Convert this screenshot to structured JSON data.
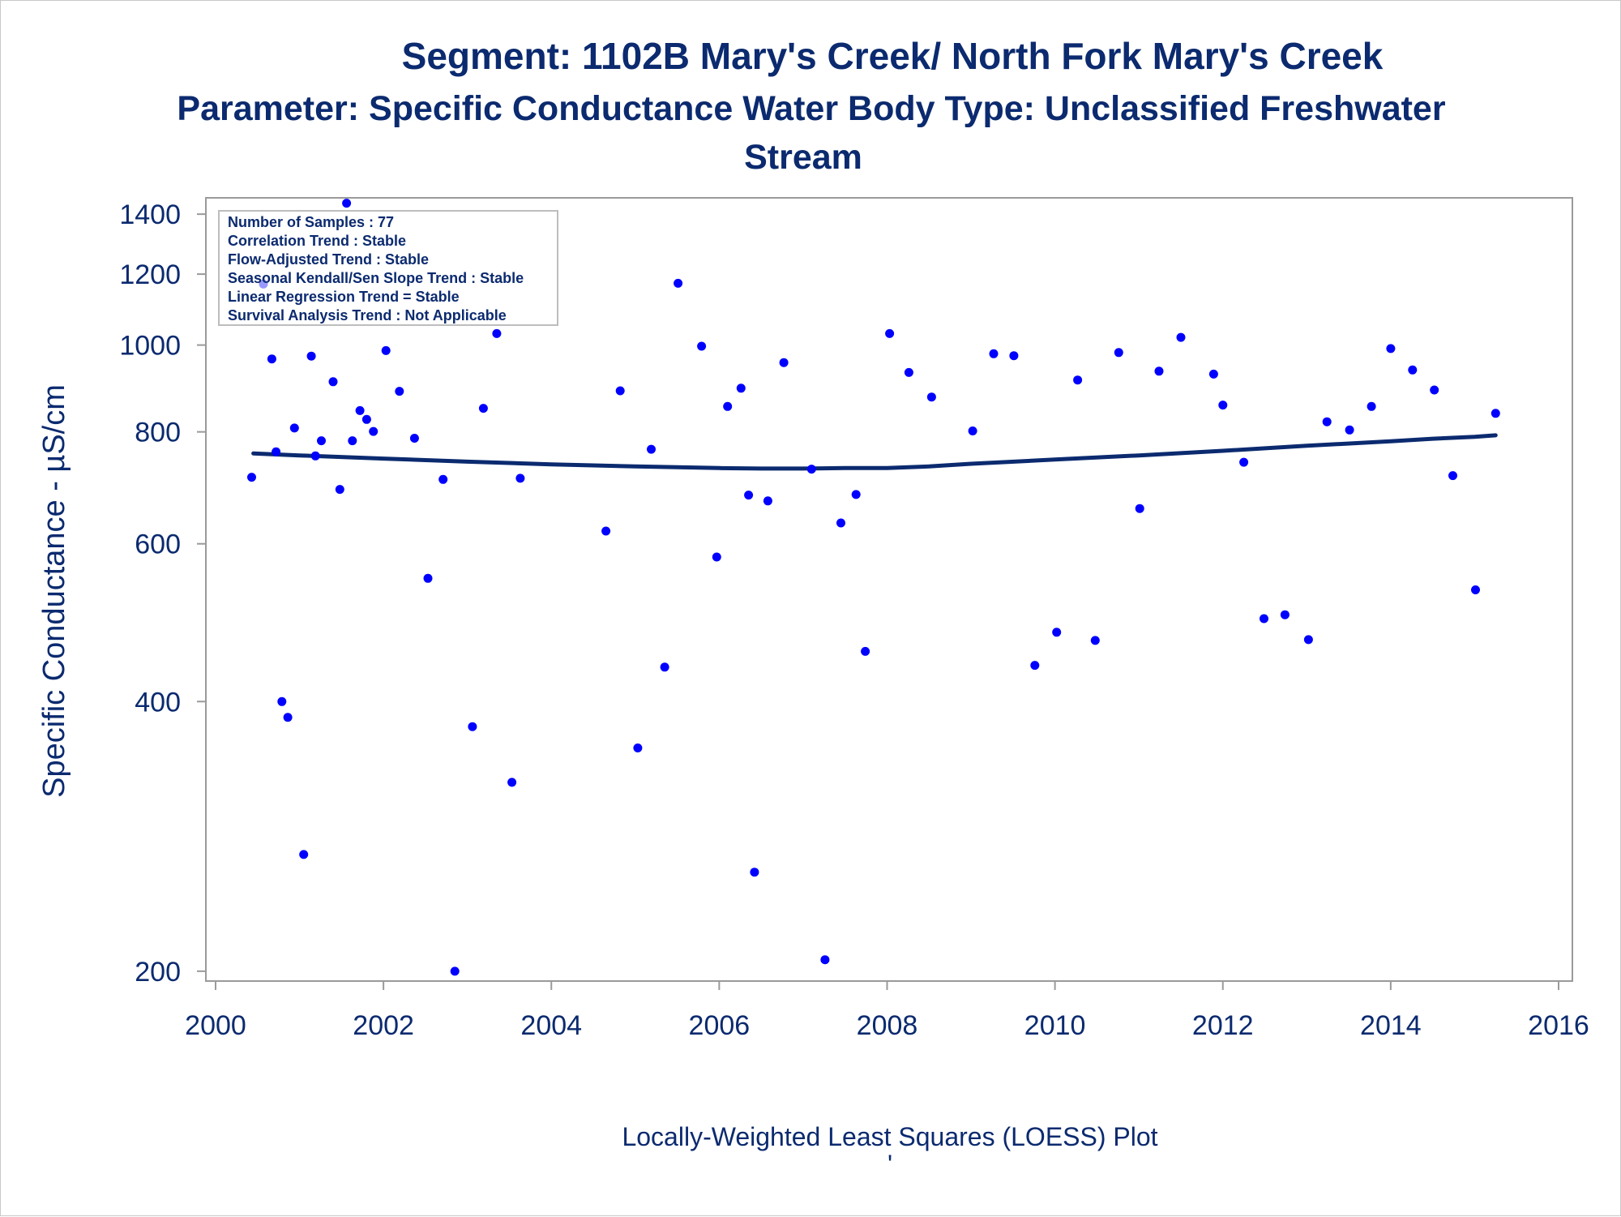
{
  "chart_data": {
    "type": "scatter",
    "title": "Segment: 1102B  Mary's Creek/ North Fork Mary's Creek",
    "subtitle_line1": "Parameter: Specific Conductance   Water Body Type: Unclassified Freshwater",
    "subtitle_line2": "Stream",
    "ylabel": "Specific Conductance -  µS/cm",
    "xlabel": "",
    "footnote": "Locally-Weighted Least Squares (LOESS) Plot",
    "footnote_mark": "'",
    "y_scale": "log",
    "xlim": [
      2000,
      2016
    ],
    "ylim": [
      195,
      1460
    ],
    "x_ticks": [
      "2000",
      "2002",
      "2004",
      "2006",
      "2008",
      "2010",
      "2012",
      "2014",
      "2016"
    ],
    "y_ticks": [
      "200",
      "400",
      "600",
      "800",
      "1000",
      "1200",
      "1400"
    ],
    "grid": false,
    "stats_box": {
      "placement": "top-left",
      "lines": [
        "Number of Samples : 77",
        "Correlation Trend : Stable",
        "Flow-Adjusted Trend : Stable",
        "Seasonal Kendall/Sen Slope Trend : Stable",
        "Linear Regression Trend = Stable",
        "Survival Analysis Trend : Not Applicable"
      ]
    },
    "colors": {
      "points": "#0000ff",
      "loess": "#0b2a6f",
      "text": "#0b2a6f",
      "axis": "#9a9a9a"
    },
    "series": [
      {
        "kind": "points",
        "x": [
          2000.43,
          2000.57,
          2000.67,
          2000.72,
          2000.79,
          2000.86,
          2000.94,
          2001.05,
          2001.14,
          2001.19,
          2001.26,
          2001.4,
          2001.48,
          2001.56,
          2001.63,
          2001.72,
          2001.8,
          2001.88,
          2002.03,
          2002.19,
          2002.37,
          2002.53,
          2002.71,
          2002.85,
          2003.06,
          2003.19,
          2003.35,
          2003.53,
          2003.63,
          2004.65,
          2004.82,
          2005.03,
          2005.19,
          2005.35,
          2005.51,
          2005.79,
          2005.97,
          2006.1,
          2006.26,
          2006.35,
          2006.42,
          2006.58,
          2006.77,
          2007.1,
          2007.26,
          2007.45,
          2007.63,
          2007.74,
          2008.03,
          2008.26,
          2008.53,
          2009.02,
          2009.27,
          2009.51,
          2009.76,
          2010.02,
          2010.27,
          2010.48,
          2010.76,
          2011.01,
          2011.24,
          2011.5,
          2011.89,
          2012.0,
          2012.25,
          2012.49,
          2012.74,
          2013.02,
          2013.24,
          2013.51,
          2013.77,
          2014.0,
          2014.26,
          2014.52,
          2014.74,
          2015.01,
          2015.25
        ],
        "y": [
          712,
          1170,
          965,
          760,
          400,
          384,
          808,
          270,
          972,
          752,
          782,
          910,
          690,
          1440,
          782,
          845,
          826,
          801,
          986,
          888,
          787,
          549,
          708,
          200,
          375,
          850,
          1030,
          325,
          710,
          620,
          889,
          355,
          765,
          437,
          1172,
          997,
          580,
          854,
          895,
          680,
          258,
          670,
          956,
          727,
          206,
          633,
          681,
          455,
          1030,
          932,
          875,
          802,
          978,
          973,
          439,
          478,
          914,
          468,
          981,
          657,
          935,
          1020,
          928,
          857,
          740,
          495,
          500,
          469,
          821,
          804,
          854,
          991,
          938,
          891,
          715,
          533,
          839
        ]
      },
      {
        "kind": "loess",
        "x": [
          2000.45,
          2001.0,
          2002.0,
          2003.0,
          2004.0,
          2005.0,
          2006.0,
          2006.5,
          2007.0,
          2007.5,
          2008.0,
          2008.5,
          2009.0,
          2010.0,
          2011.0,
          2012.0,
          2013.0,
          2014.0,
          2014.5,
          2015.0,
          2015.25
        ],
        "y": [
          757,
          753,
          747,
          741,
          736,
          732,
          729,
          728,
          728,
          729,
          729,
          732,
          737,
          745,
          753,
          762,
          772,
          781,
          786,
          790,
          793
        ]
      }
    ]
  }
}
